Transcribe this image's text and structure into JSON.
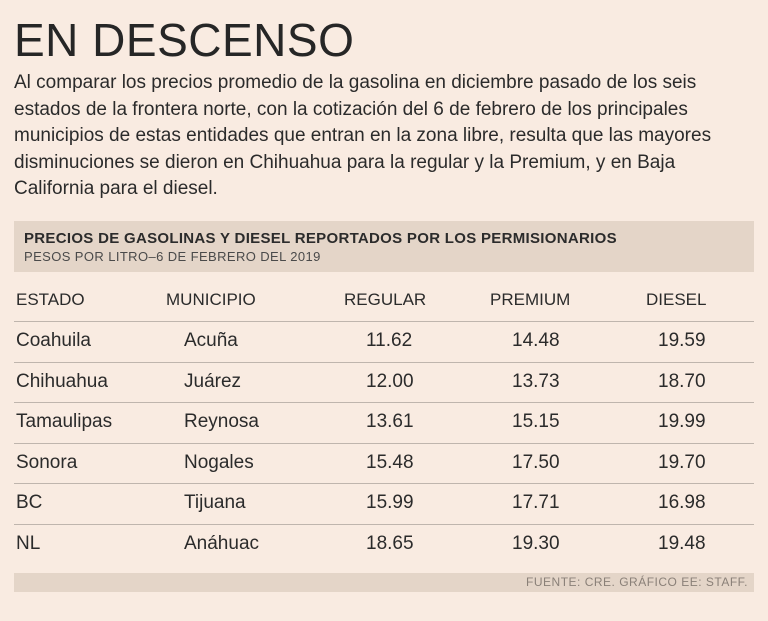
{
  "title": "EN DESCENSO",
  "intro": "Al comparar los precios promedio de la gasolina en diciembre pasado de los seis estados de la frontera norte, con la cotización del 6 de febrero de los principales municipios de estas entidades que entran en la zona libre, resulta que las mayores disminuciones se dieron en Chihuahua para la regular y la Premium, y en Baja California para el diesel.",
  "table": {
    "title": "PRECIOS DE GASOLINAS Y DIESEL REPORTADOS POR LOS PERMISIONARIOS",
    "subtitle": "PESOS POR LITRO–6 DE FEBRERO DEL 2019",
    "columns": [
      "ESTADO",
      "MUNICIPIO",
      "REGULAR",
      "PREMIUM",
      "DIESEL"
    ],
    "rows": [
      [
        "Coahuila",
        "Acuña",
        "11.62",
        "14.48",
        "19.59"
      ],
      [
        "Chihuahua",
        "Juárez",
        "12.00",
        "13.73",
        "18.70"
      ],
      [
        "Tamaulipas",
        "Reynosa",
        "13.61",
        "15.15",
        "19.99"
      ],
      [
        "Sonora",
        "Nogales",
        "15.48",
        "17.50",
        "19.70"
      ],
      [
        "BC",
        "Tijuana",
        "15.99",
        "17.71",
        "16.98"
      ],
      [
        "NL",
        "Anáhuac",
        "18.65",
        "19.30",
        "19.48"
      ]
    ]
  },
  "source": "FUENTE: CRE. GRÁFICO EE: STAFF.",
  "colors": {
    "background": "#f9ebe1",
    "band": "#e4d5c8",
    "rule": "#bfb5ad"
  }
}
